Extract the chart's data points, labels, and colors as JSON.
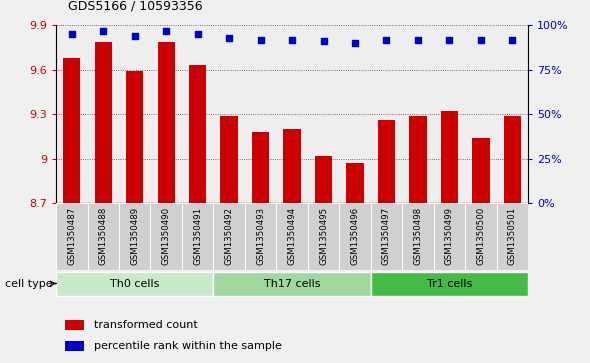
{
  "title": "GDS5166 / 10593356",
  "samples": [
    "GSM1350487",
    "GSM1350488",
    "GSM1350489",
    "GSM1350490",
    "GSM1350491",
    "GSM1350492",
    "GSM1350493",
    "GSM1350494",
    "GSM1350495",
    "GSM1350496",
    "GSM1350497",
    "GSM1350498",
    "GSM1350499",
    "GSM1350500",
    "GSM1350501"
  ],
  "transformed_count": [
    9.68,
    9.79,
    9.59,
    9.79,
    9.63,
    9.29,
    9.18,
    9.2,
    9.02,
    8.97,
    9.26,
    9.29,
    9.32,
    9.14,
    9.29
  ],
  "percentile_rank": [
    95,
    97,
    94,
    97,
    95,
    93,
    92,
    92,
    91,
    90,
    92,
    92,
    92,
    92,
    92
  ],
  "cell_types": [
    {
      "label": "Th0 cells",
      "start": 0,
      "end": 5,
      "color": "#c8eac8"
    },
    {
      "label": "Th17 cells",
      "start": 5,
      "end": 10,
      "color": "#a0d8a0"
    },
    {
      "label": "Tr1 cells",
      "start": 10,
      "end": 15,
      "color": "#44bb44"
    }
  ],
  "ylim_left": [
    8.7,
    9.9
  ],
  "ylim_right": [
    0,
    100
  ],
  "yticks_left": [
    8.7,
    9.0,
    9.3,
    9.6,
    9.9
  ],
  "ytick_labels_left": [
    "8.7",
    "9",
    "9.3",
    "9.6",
    "9.9"
  ],
  "yticks_right": [
    0,
    25,
    50,
    75,
    100
  ],
  "ytick_labels_right": [
    "0%",
    "25%",
    "50%",
    "75%",
    "100%"
  ],
  "bar_color": "#cc0000",
  "dot_color": "#0000cc",
  "bar_width": 0.55,
  "bg_color": "#f0f0f0",
  "plot_bg": "#ffffff",
  "sample_col_color": "#d0d0d0",
  "legend_items": [
    {
      "label": "transformed count",
      "color": "#cc0000"
    },
    {
      "label": "percentile rank within the sample",
      "color": "#0000cc"
    }
  ]
}
